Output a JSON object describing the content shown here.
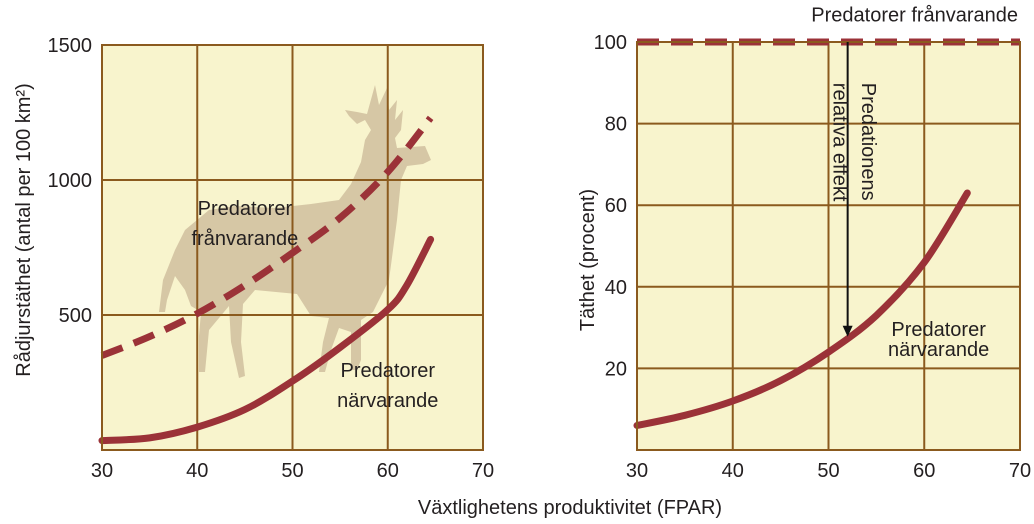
{
  "colors": {
    "plot_bg": "#f8f4cd",
    "grid": "#8b5a1e",
    "curve": "#9b3238",
    "silhouette": "#d6c7a5",
    "text": "#231f20",
    "arrow": "#111111"
  },
  "shared_xlabel": "Växtlighetens produktivitet (FPAR)",
  "icons": {
    "deer": "deer-silhouette-icon"
  },
  "chart_data": [
    {
      "type": "line",
      "xlabel": "",
      "ylabel": "Rådjurstäthet (antal per 100 km²)",
      "xlim": [
        30,
        70
      ],
      "ylim": [
        0,
        1500
      ],
      "xticks": [
        30,
        40,
        50,
        60,
        70
      ],
      "yticks": [
        500,
        1000,
        1500
      ],
      "grid": true,
      "series": [
        {
          "name": "Predatorer frånvarande",
          "style": "dashed",
          "label": "Predatorer frånvarande",
          "x": [
            30,
            35,
            40,
            45,
            50,
            55,
            60,
            64.5
          ],
          "y": [
            350,
            420,
            505,
            610,
            730,
            860,
            1030,
            1230
          ]
        },
        {
          "name": "Predatorer närvarande",
          "style": "solid",
          "label": "Predatorer närvarande",
          "x": [
            30,
            35,
            40,
            45,
            50,
            55,
            60,
            62,
            64.5
          ],
          "y": [
            35,
            45,
            85,
            150,
            255,
            380,
            520,
            610,
            780
          ]
        }
      ],
      "annotations": [
        {
          "text": "Predatorer",
          "x": 45,
          "y": 870
        },
        {
          "text": "frånvarande",
          "x": 45,
          "y": 760
        },
        {
          "text": "Predatorer",
          "x": 60,
          "y": 270
        },
        {
          "text": "närvarande",
          "x": 60,
          "y": 160
        }
      ]
    },
    {
      "type": "line",
      "xlabel": "",
      "ylabel": "Täthet (procent)",
      "xlim": [
        30,
        70
      ],
      "ylim": [
        0,
        100
      ],
      "xticks": [
        30,
        40,
        50,
        60,
        70
      ],
      "yticks": [
        20,
        40,
        60,
        80,
        100
      ],
      "grid": true,
      "series": [
        {
          "name": "Predatorer frånvarande",
          "style": "dashed",
          "label": "Predatorer frånvarande",
          "x": [
            30,
            70
          ],
          "y": [
            100,
            100
          ]
        },
        {
          "name": "Predatorer närvarande",
          "style": "solid",
          "label": "Predatorer närvarande",
          "x": [
            30,
            35,
            40,
            45,
            50,
            55,
            60,
            64.5
          ],
          "y": [
            6,
            8.5,
            12,
            17,
            24,
            33,
            46,
            63
          ]
        }
      ],
      "annotations": [
        {
          "text": "Predatorer frånvarande",
          "x": 59,
          "y": 105
        },
        {
          "text": "Predationens",
          "x": 53.5,
          "y": 90,
          "rotate": 90
        },
        {
          "text": "relativa effekt",
          "x": 50.5,
          "y": 90,
          "rotate": 90
        },
        {
          "text": "Predatorer",
          "x": 61.5,
          "y": 28
        },
        {
          "text": "närvarande",
          "x": 61.5,
          "y": 23
        }
      ],
      "arrow": {
        "x": 52,
        "from_y": 100,
        "to_y": 28,
        "label": "Predationens relativa effekt"
      }
    }
  ]
}
